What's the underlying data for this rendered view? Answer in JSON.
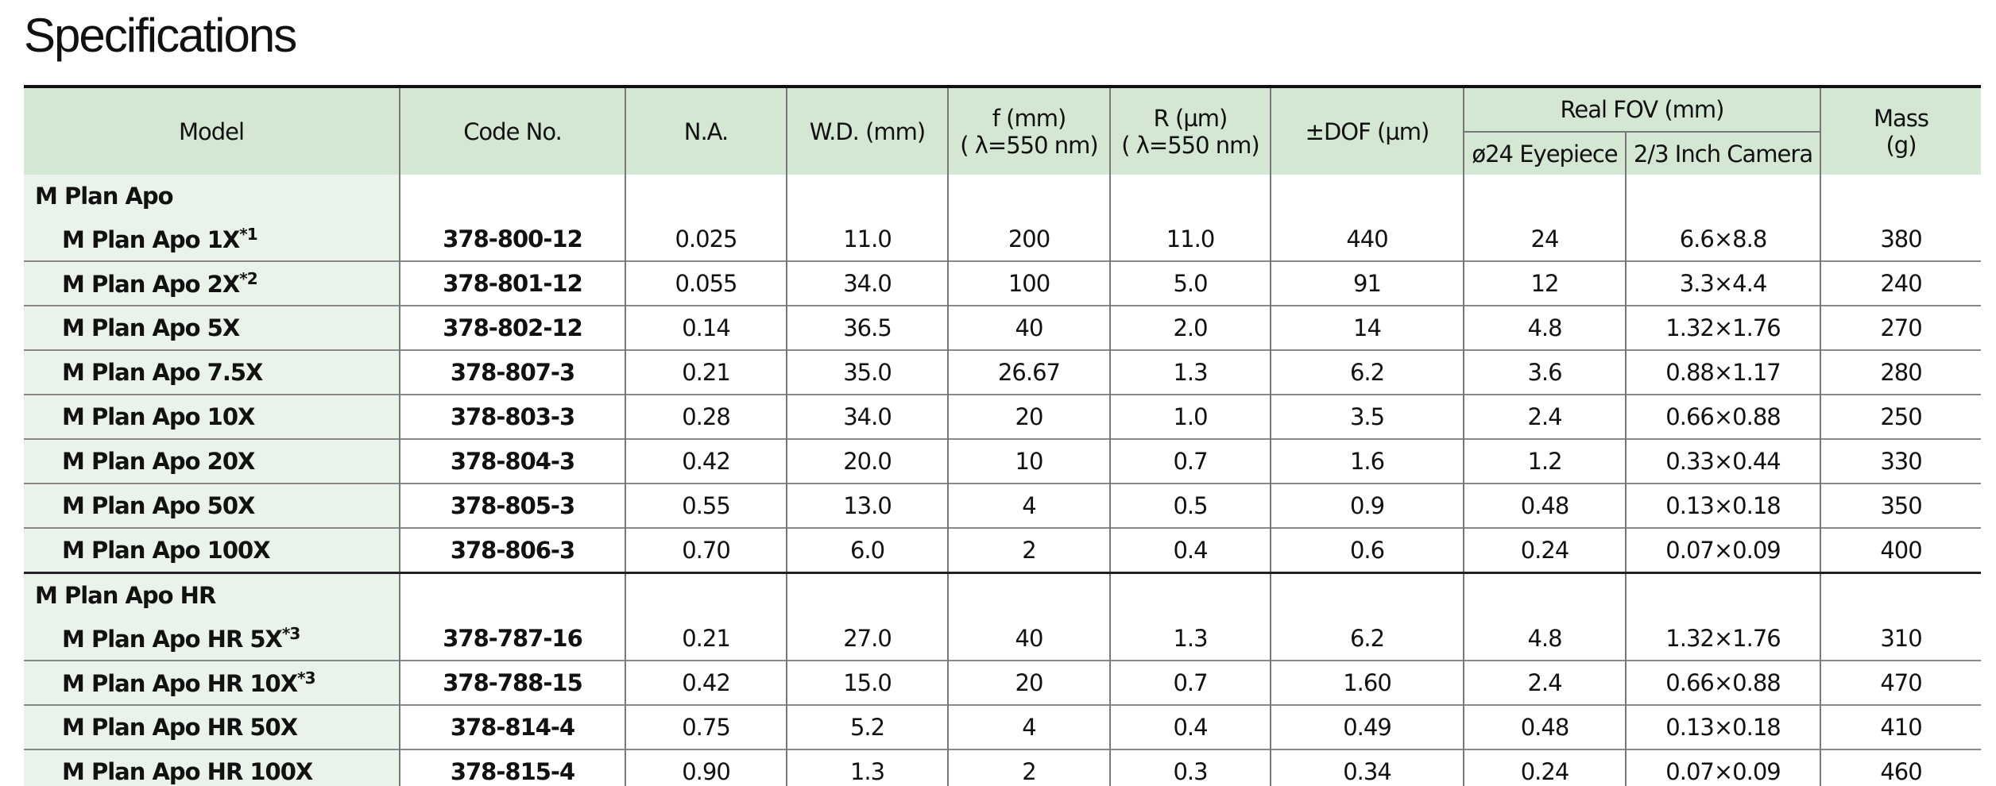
{
  "title": "Specifications",
  "table": {
    "header": {
      "columns": [
        {
          "lines": [
            "Model"
          ]
        },
        {
          "lines": [
            "Code No."
          ]
        },
        {
          "lines": [
            "N.A."
          ]
        },
        {
          "lines": [
            "W.D. (mm)"
          ]
        },
        {
          "lines": [
            "f (mm)",
            "( λ=550 nm)"
          ]
        },
        {
          "lines": [
            "R (µm)",
            "( λ=550 nm)"
          ]
        },
        {
          "lines": [
            "±DOF (µm)"
          ]
        },
        {
          "group": "Real FOV (mm)",
          "subs": [
            "ø24 Eyepiece",
            "2/3 Inch Camera"
          ]
        },
        {
          "lines": [
            "Mass",
            "(g)"
          ]
        }
      ]
    },
    "groups": [
      {
        "name": "M Plan Apo",
        "rows": [
          {
            "model": "M Plan Apo 1X",
            "note": "*1",
            "cells": [
              "378-800-12",
              "0.025",
              "11.0",
              "200",
              "11.0",
              "440",
              "24",
              "6.6×8.8",
              "380"
            ]
          },
          {
            "model": "M Plan Apo 2X",
            "note": "*2",
            "cells": [
              "378-801-12",
              "0.055",
              "34.0",
              "100",
              "5.0",
              "91",
              "12",
              "3.3×4.4",
              "240"
            ]
          },
          {
            "model": "M Plan Apo 5X",
            "cells": [
              "378-802-12",
              "0.14",
              "36.5",
              "40",
              "2.0",
              "14",
              "4.8",
              "1.32×1.76",
              "270"
            ]
          },
          {
            "model": "M Plan Apo 7.5X",
            "cells": [
              "378-807-3",
              "0.21",
              "35.0",
              "26.67",
              "1.3",
              "6.2",
              "3.6",
              "0.88×1.17",
              "280"
            ]
          },
          {
            "model": "M Plan Apo 10X",
            "cells": [
              "378-803-3",
              "0.28",
              "34.0",
              "20",
              "1.0",
              "3.5",
              "2.4",
              "0.66×0.88",
              "250"
            ]
          },
          {
            "model": "M Plan Apo 20X",
            "cells": [
              "378-804-3",
              "0.42",
              "20.0",
              "10",
              "0.7",
              "1.6",
              "1.2",
              "0.33×0.44",
              "330"
            ]
          },
          {
            "model": "M Plan Apo 50X",
            "cells": [
              "378-805-3",
              "0.55",
              "13.0",
              "4",
              "0.5",
              "0.9",
              "0.48",
              "0.13×0.18",
              "350"
            ]
          },
          {
            "model": "M Plan Apo 100X",
            "cells": [
              "378-806-3",
              "0.70",
              "6.0",
              "2",
              "0.4",
              "0.6",
              "0.24",
              "0.07×0.09",
              "400"
            ]
          }
        ]
      },
      {
        "name": "M Plan Apo HR",
        "rows": [
          {
            "model": "M Plan Apo HR 5X",
            "note": "*3",
            "cells": [
              "378-787-16",
              "0.21",
              "27.0",
              "40",
              "1.3",
              "6.2",
              "4.8",
              "1.32×1.76",
              "310"
            ]
          },
          {
            "model": "M Plan Apo HR 10X",
            "note": "*3",
            "cells": [
              "378-788-15",
              "0.42",
              "15.0",
              "20",
              "0.7",
              "1.60",
              "2.4",
              "0.66×0.88",
              "470"
            ]
          },
          {
            "model": "M Plan Apo HR 50X",
            "cells": [
              "378-814-4",
              "0.75",
              "5.2",
              "4",
              "0.4",
              "0.49",
              "0.48",
              "0.13×0.18",
              "410"
            ]
          },
          {
            "model": "M Plan Apo HR 100X",
            "cells": [
              "378-815-4",
              "0.90",
              "1.3",
              "2",
              "0.3",
              "0.34",
              "0.24",
              "0.07×0.09",
              "460"
            ]
          }
        ]
      }
    ]
  }
}
